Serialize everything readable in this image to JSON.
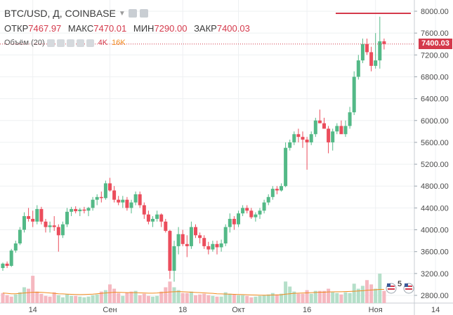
{
  "header": {
    "symbol": "BTC/USD, Д, COINBASE",
    "ohlc": [
      {
        "label": "ОТКР",
        "value": "7467.97"
      },
      {
        "label": "МАКС",
        "value": "7470.01"
      },
      {
        "label": "МИН",
        "value": "7290.00"
      },
      {
        "label": "ЗАКР",
        "value": "7400.03"
      }
    ]
  },
  "volume_legend": {
    "label": "Объём (20)",
    "value1": "4K",
    "value2": "16K"
  },
  "price_badge": "7400.03",
  "icons": {
    "earnings": "5"
  },
  "colors": {
    "up": "#53b987",
    "down": "#eb4d5c",
    "up_vol": "#b5dfc9",
    "down_vol": "#f5b8c0",
    "ma": "#f08b1f",
    "last": "#d4394b"
  },
  "chart_data": {
    "type": "candlestick",
    "y_axis": {
      "min": 2600,
      "max": 8200,
      "ticks": [
        "2800.00",
        "3200.00",
        "3600.00",
        "4000.00",
        "4400.00",
        "4800.00",
        "5200.00",
        "5600.00",
        "6000.00",
        "6400.00",
        "6800.00",
        "7200.00",
        "7600.00",
        "8000.00"
      ]
    },
    "x_ticks": [
      {
        "label": "14",
        "index": 7
      },
      {
        "label": "Сен",
        "index": 25
      },
      {
        "label": "18",
        "index": 42
      },
      {
        "label": "Окт",
        "index": 55
      },
      {
        "label": "16",
        "index": 71
      },
      {
        "label": "Ноя",
        "index": 87
      },
      {
        "label": "14",
        "index": 101
      }
    ],
    "ohlc": [
      [
        3300,
        3400,
        3250,
        3380
      ],
      [
        3380,
        3420,
        3300,
        3340
      ],
      [
        3340,
        3650,
        3320,
        3620
      ],
      [
        3620,
        3800,
        3580,
        3750
      ],
      [
        3750,
        4050,
        3720,
        4000
      ],
      [
        4000,
        4320,
        3950,
        4250
      ],
      [
        4250,
        4400,
        4150,
        4200
      ],
      [
        4200,
        4350,
        4050,
        4150
      ],
      [
        4150,
        4450,
        4100,
        4380
      ],
      [
        4380,
        4420,
        4100,
        4150
      ],
      [
        4150,
        4200,
        3950,
        4050
      ],
      [
        4050,
        4150,
        3950,
        4080
      ],
      [
        4080,
        4250,
        3980,
        4050
      ],
      [
        4050,
        4100,
        3600,
        3900
      ],
      [
        3900,
        4150,
        3850,
        4100
      ],
      [
        4100,
        4400,
        4050,
        4330
      ],
      [
        4330,
        4420,
        4250,
        4380
      ],
      [
        4380,
        4430,
        4300,
        4340
      ],
      [
        4340,
        4400,
        4250,
        4370
      ],
      [
        4370,
        4420,
        4300,
        4350
      ],
      [
        4350,
        4420,
        4250,
        4400
      ],
      [
        4400,
        4600,
        4350,
        4550
      ],
      [
        4550,
        4650,
        4450,
        4600
      ],
      [
        4600,
        4700,
        4500,
        4580
      ],
      [
        4580,
        4900,
        4550,
        4850
      ],
      [
        4850,
        4950,
        4700,
        4720
      ],
      [
        4720,
        4800,
        4500,
        4550
      ],
      [
        4550,
        4620,
        4450,
        4500
      ],
      [
        4500,
        4620,
        4400,
        4550
      ],
      [
        4550,
        4600,
        4350,
        4400
      ],
      [
        4400,
        4550,
        4300,
        4500
      ],
      [
        4500,
        4700,
        4450,
        4650
      ],
      [
        4650,
        4700,
        4400,
        4450
      ],
      [
        4450,
        4500,
        4200,
        4280
      ],
      [
        4280,
        4350,
        4100,
        4150
      ],
      [
        4150,
        4250,
        4050,
        4200
      ],
      [
        4200,
        4350,
        4150,
        4280
      ],
      [
        4280,
        4300,
        4050,
        4150
      ],
      [
        4150,
        4200,
        3950,
        3980
      ],
      [
        3980,
        4000,
        3100,
        3250
      ],
      [
        3250,
        3800,
        3050,
        3700
      ],
      [
        3700,
        4050,
        3550,
        3920
      ],
      [
        3920,
        4000,
        3700,
        3740
      ],
      [
        3740,
        3900,
        3500,
        3700
      ],
      [
        3700,
        4150,
        3650,
        4050
      ],
      [
        4050,
        4100,
        3850,
        3900
      ],
      [
        3900,
        3950,
        3750,
        3850
      ],
      [
        3850,
        3900,
        3650,
        3700
      ],
      [
        3700,
        3780,
        3550,
        3640
      ],
      [
        3640,
        3800,
        3600,
        3740
      ],
      [
        3740,
        3800,
        3550,
        3680
      ],
      [
        3680,
        3820,
        3600,
        3750
      ],
      [
        3750,
        4100,
        3700,
        4050
      ],
      [
        4050,
        4300,
        3950,
        4200
      ],
      [
        4200,
        4250,
        4000,
        4100
      ],
      [
        4100,
        4350,
        4050,
        4300
      ],
      [
        4300,
        4450,
        4250,
        4400
      ],
      [
        4400,
        4450,
        4300,
        4350
      ],
      [
        4350,
        4400,
        4200,
        4230
      ],
      [
        4230,
        4320,
        4150,
        4280
      ],
      [
        4280,
        4400,
        4200,
        4350
      ],
      [
        4350,
        4550,
        4300,
        4500
      ],
      [
        4500,
        4650,
        4450,
        4600
      ],
      [
        4600,
        4800,
        4550,
        4750
      ],
      [
        4750,
        4800,
        4650,
        4720
      ],
      [
        4720,
        4850,
        4700,
        4800
      ],
      [
        4800,
        5600,
        4780,
        5500
      ],
      [
        5500,
        5650,
        5450,
        5600
      ],
      [
        5600,
        5800,
        5550,
        5750
      ],
      [
        5750,
        5850,
        5600,
        5700
      ],
      [
        5700,
        5800,
        5500,
        5650
      ],
      [
        5650,
        5700,
        5100,
        5600
      ],
      [
        5600,
        5800,
        5550,
        5750
      ],
      [
        5750,
        6050,
        5700,
        6000
      ],
      [
        6000,
        6200,
        5950,
        5950
      ],
      [
        5950,
        6050,
        5850,
        5850
      ],
      [
        5850,
        5900,
        5400,
        5600
      ],
      [
        5600,
        5850,
        5450,
        5800
      ],
      [
        5800,
        5950,
        5750,
        5900
      ],
      [
        5900,
        6000,
        5800,
        5750
      ],
      [
        5750,
        6000,
        5700,
        5900
      ],
      [
        5900,
        6250,
        5850,
        6150
      ],
      [
        6150,
        6900,
        6100,
        6800
      ],
      [
        6800,
        7200,
        6750,
        7100
      ],
      [
        7100,
        7500,
        7050,
        7400
      ],
      [
        7400,
        7500,
        7200,
        7250
      ],
      [
        7250,
        7350,
        6900,
        7000
      ],
      [
        7000,
        7600,
        6950,
        7100
      ],
      [
        7100,
        7900,
        6950,
        7450
      ],
      [
        7450,
        7500,
        7300,
        7400
      ]
    ],
    "volume": [
      [
        1.4,
        0
      ],
      [
        1.1,
        0
      ],
      [
        0.9,
        0
      ],
      [
        1.2,
        1
      ],
      [
        1.5,
        1
      ],
      [
        2.2,
        1
      ],
      [
        2.0,
        0
      ],
      [
        3.8,
        0
      ],
      [
        1.6,
        0
      ],
      [
        1.3,
        0
      ],
      [
        1.0,
        0
      ],
      [
        0.9,
        0
      ],
      [
        1.5,
        0
      ],
      [
        1.1,
        1
      ],
      [
        0.8,
        1
      ],
      [
        1.2,
        1
      ],
      [
        1.0,
        1
      ],
      [
        1.0,
        0
      ],
      [
        0.9,
        1
      ],
      [
        0.8,
        1
      ],
      [
        0.9,
        1
      ],
      [
        1.1,
        1
      ],
      [
        1.2,
        1
      ],
      [
        1.6,
        0
      ],
      [
        1.8,
        1
      ],
      [
        2.6,
        0
      ],
      [
        2.0,
        0
      ],
      [
        1.4,
        0
      ],
      [
        1.0,
        1
      ],
      [
        1.5,
        0
      ],
      [
        1.6,
        0
      ],
      [
        1.7,
        1
      ],
      [
        1.1,
        0
      ],
      [
        1.3,
        0
      ],
      [
        1.0,
        0
      ],
      [
        0.9,
        1
      ],
      [
        1.0,
        1
      ],
      [
        1.6,
        0
      ],
      [
        2.2,
        0
      ],
      [
        3.0,
        0
      ],
      [
        2.2,
        1
      ],
      [
        1.8,
        1
      ],
      [
        1.4,
        0
      ],
      [
        1.4,
        0
      ],
      [
        1.6,
        1
      ],
      [
        1.1,
        0
      ],
      [
        1.2,
        0
      ],
      [
        1.3,
        0
      ],
      [
        1.1,
        0
      ],
      [
        1.0,
        1
      ],
      [
        0.9,
        0
      ],
      [
        0.9,
        1
      ],
      [
        1.5,
        1
      ],
      [
        1.3,
        1
      ],
      [
        1.2,
        0
      ],
      [
        1.1,
        1
      ],
      [
        1.1,
        1
      ],
      [
        1.0,
        0
      ],
      [
        0.8,
        0
      ],
      [
        0.9,
        1
      ],
      [
        1.0,
        1
      ],
      [
        1.1,
        1
      ],
      [
        1.2,
        1
      ],
      [
        1.4,
        1
      ],
      [
        1.2,
        0
      ],
      [
        1.3,
        1
      ],
      [
        3.0,
        1
      ],
      [
        2.3,
        1
      ],
      [
        1.6,
        1
      ],
      [
        1.3,
        0
      ],
      [
        1.3,
        0
      ],
      [
        1.8,
        0
      ],
      [
        1.3,
        1
      ],
      [
        1.7,
        1
      ],
      [
        1.7,
        0
      ],
      [
        1.7,
        0
      ],
      [
        2.0,
        0
      ],
      [
        1.5,
        1
      ],
      [
        1.4,
        1
      ],
      [
        1.2,
        0
      ],
      [
        1.5,
        1
      ],
      [
        1.4,
        1
      ],
      [
        2.7,
        1
      ],
      [
        2.0,
        1
      ],
      [
        2.4,
        1
      ],
      [
        3.2,
        0
      ],
      [
        2.6,
        0
      ],
      [
        2.0,
        1
      ],
      [
        4.1,
        1
      ],
      [
        1.7,
        0
      ]
    ],
    "volume_ma": [
      1.4,
      1.35,
      1.3,
      1.3,
      1.35,
      1.4,
      1.45,
      1.5,
      1.52,
      1.5,
      1.45,
      1.4,
      1.35,
      1.3,
      1.28,
      1.25,
      1.22,
      1.2,
      1.18,
      1.2,
      1.22,
      1.25,
      1.3,
      1.35,
      1.4,
      1.45,
      1.5,
      1.5,
      1.48,
      1.45,
      1.45,
      1.45,
      1.42,
      1.4,
      1.38,
      1.38,
      1.4,
      1.45,
      1.5,
      1.55,
      1.58,
      1.6,
      1.58,
      1.55,
      1.52,
      1.48,
      1.45,
      1.42,
      1.38,
      1.35,
      1.3,
      1.28,
      1.26,
      1.24,
      1.22,
      1.2,
      1.18,
      1.16,
      1.14,
      1.12,
      1.1,
      1.1,
      1.1,
      1.12,
      1.14,
      1.16,
      1.25,
      1.3,
      1.35,
      1.38,
      1.4,
      1.42,
      1.45,
      1.48,
      1.5,
      1.52,
      1.55,
      1.56,
      1.58,
      1.58,
      1.6,
      1.62,
      1.65,
      1.68,
      1.72,
      1.78,
      1.82,
      1.86,
      1.9,
      1.9
    ],
    "volume_scale_max": 8.5,
    "last_price": 7400.03
  }
}
